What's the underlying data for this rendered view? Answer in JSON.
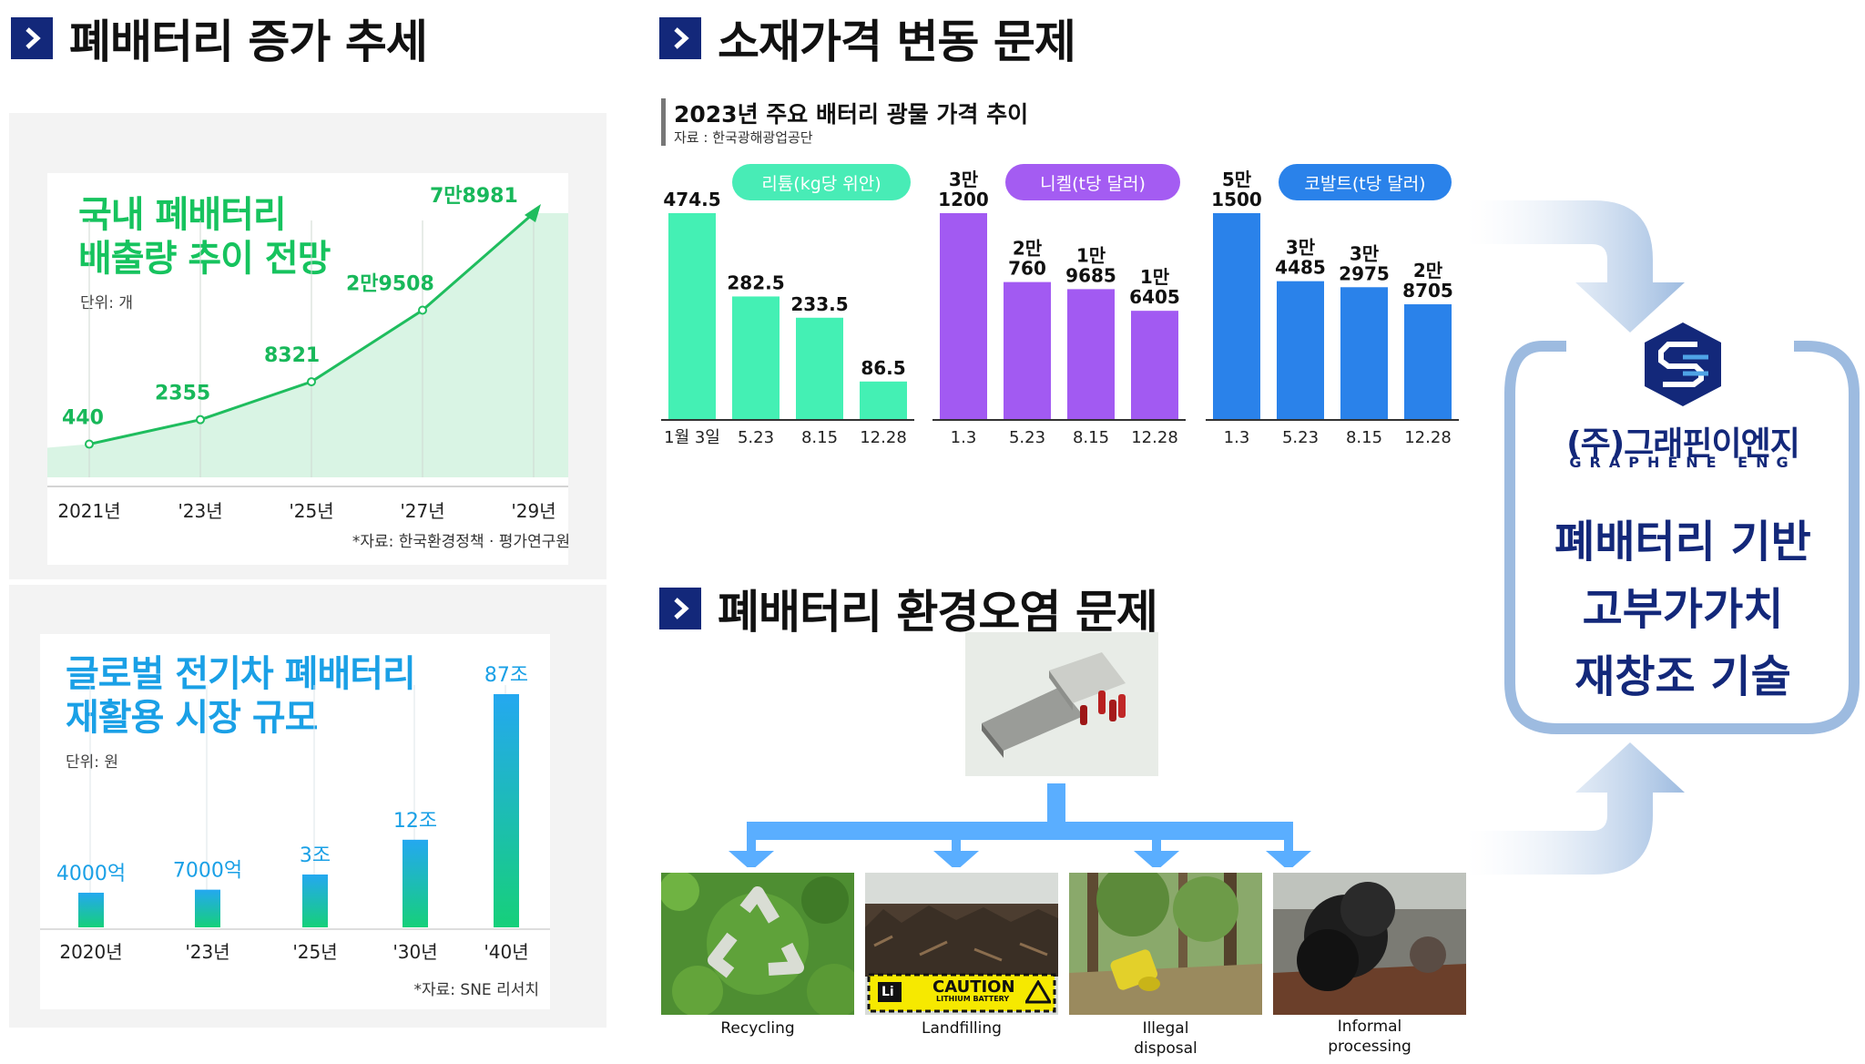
{
  "sections": {
    "waste_trend_title": "폐배터리 증가 추세",
    "price_title": "소재가격 변동 문제",
    "pollution_title": "폐배터리 환경오염 문제"
  },
  "domestic_chart": {
    "title_line1": "국내 폐배터리",
    "title_line2": "배출량 추이 전망",
    "unit": "단위: 개",
    "source": "*자료: 한국환경정책 · 평가연구원",
    "chart_data": {
      "type": "area",
      "categories": [
        "2021년",
        "'23년",
        "'25년",
        "'27년",
        "'29년"
      ],
      "values": [
        440,
        2355,
        8321,
        29508,
        78981
      ],
      "value_labels": [
        "440",
        "2355",
        "8321",
        "2만9508",
        "7만8981"
      ],
      "series": [
        {
          "name": "",
          "values": [
            440,
            2355,
            8321,
            29508,
            78981
          ]
        }
      ]
    }
  },
  "global_chart": {
    "title_line1": "글로벌 전기차 폐배터리",
    "title_line2": "재활용 시장 규모",
    "unit": "단위: 원",
    "source": "*자료: SNE 리서치",
    "chart_data": {
      "type": "bar",
      "categories": [
        "2020년",
        "'23년",
        "'25년",
        "'30년",
        "'40년"
      ],
      "values": [
        0.4,
        0.7,
        3,
        12,
        87
      ],
      "value_labels": [
        "4000억",
        "7000억",
        "3조",
        "12조",
        "87조"
      ],
      "unit": "조 원"
    }
  },
  "mineral_chart": {
    "title": "2023년 주요 배터리 광물 가격 추이",
    "source": "자료 : 한국광해광업공단",
    "chart_data": [
      {
        "type": "bar",
        "name": "리튬(kg당 위안)",
        "color": "#44f0b4",
        "categories": [
          "1월 3일",
          "5.23",
          "8.15",
          "12.28"
        ],
        "values": [
          474.5,
          282.5,
          233.5,
          86.5
        ],
        "value_labels": [
          "474.5",
          "282.5",
          "233.5",
          "86.5"
        ]
      },
      {
        "type": "bar",
        "name": "니켈(t당 달러)",
        "color": "#a25af2",
        "categories": [
          "1.3",
          "5.23",
          "8.15",
          "12.28"
        ],
        "values": [
          31200,
          20760,
          19685,
          16405
        ],
        "value_labels": [
          "3만\n1200",
          "2만\n760",
          "1만\n9685",
          "1만\n6405"
        ]
      },
      {
        "type": "bar",
        "name": "코발트(t당 달러)",
        "color": "#2a82ea",
        "categories": [
          "1.3",
          "5.23",
          "8.15",
          "12.28"
        ],
        "values": [
          51500,
          34485,
          32975,
          28705
        ],
        "value_labels": [
          "5만\n1500",
          "3만\n4485",
          "3만\n2975",
          "2만\n8705"
        ]
      }
    ]
  },
  "pollution": {
    "captions": [
      "Recycling",
      "Landfilling",
      "Illegal\ndisposal",
      "Informal\nprocessing"
    ],
    "caution_text": "CAUTION",
    "caution_sub": "LITHIUM BATTERY",
    "li_text": "Li"
  },
  "company": {
    "name": "(주)그래핀이엔지",
    "name_en": "GRAPHENE ENG",
    "tagline": [
      "폐배터리 기반",
      "고부가가치",
      "재창조 기술"
    ]
  },
  "colors": {
    "navy": "#13287a",
    "green": "#16c35e",
    "sky": "#1aa0e6",
    "arrow": "#5aaeff",
    "flow_arrow": "#a9c2e0"
  }
}
